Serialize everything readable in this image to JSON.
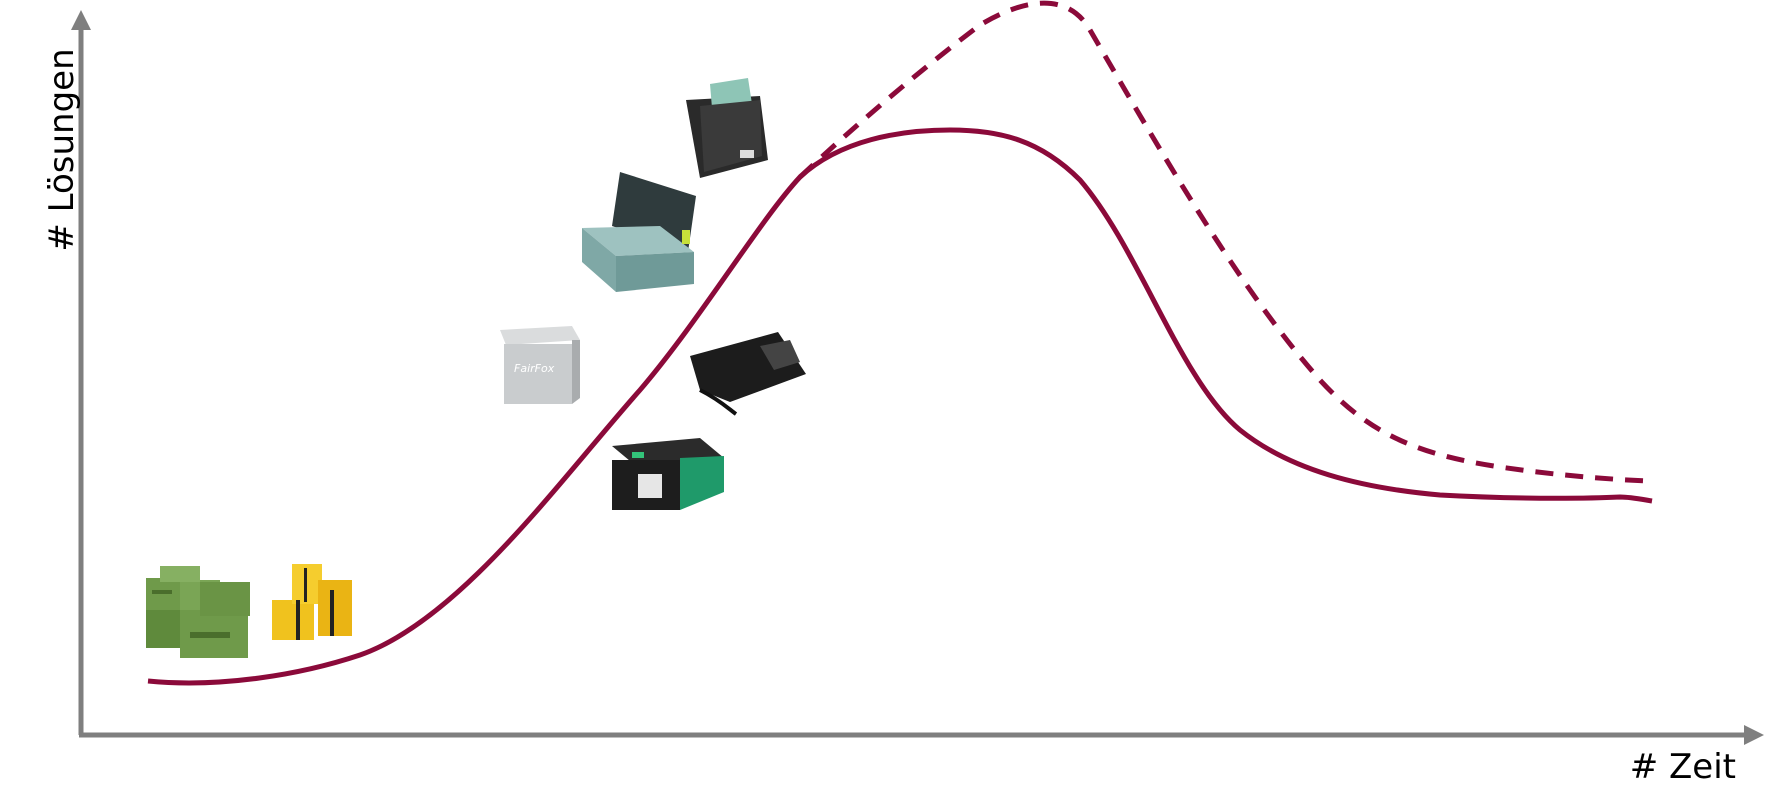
{
  "axes": {
    "x_label": "# Zeit",
    "y_label": "# Lösungen",
    "color": "#7f7f7f"
  },
  "curves": {
    "solid": {
      "color": "#8b0a3a",
      "style": "solid"
    },
    "dashed": {
      "color": "#8b0a3a",
      "style": "dashed"
    }
  },
  "products": [
    {
      "name": "green-crate-stack",
      "color": "#6f9a4a"
    },
    {
      "name": "yellow-box-stack",
      "color": "#f0c21e"
    },
    {
      "name": "fairfox-box",
      "label": "FairFox",
      "color": "#c9ccce"
    },
    {
      "name": "teal-open-box",
      "color": "#7fa8a6"
    },
    {
      "name": "black-foldable-bag",
      "color": "#2a2a2a"
    },
    {
      "name": "black-pouch",
      "color": "#1c1c1c"
    },
    {
      "name": "green-smart-box",
      "color": "#1f9a6a"
    }
  ]
}
